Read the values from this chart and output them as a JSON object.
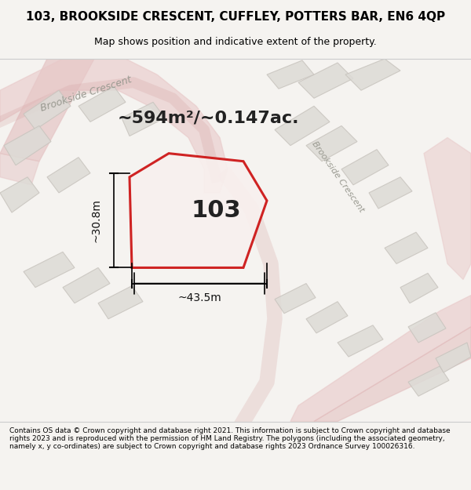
{
  "title_line1": "103, BROOKSIDE CRESCENT, CUFFLEY, POTTERS BAR, EN6 4QP",
  "title_line2": "Map shows position and indicative extent of the property.",
  "footer_text": "Contains OS data © Crown copyright and database right 2021. This information is subject to Crown copyright and database rights 2023 and is reproduced with the permission of HM Land Registry. The polygons (including the associated geometry, namely x, y co-ordinates) are subject to Crown copyright and database rights 2023 Ordnance Survey 100026316.",
  "bg_color": "#f0eeea",
  "map_bg": "#f5f3f0",
  "road_color_light": "#e8c8c8",
  "road_color_medium": "#d4a0a0",
  "building_fill": "#e0ddd8",
  "building_edge": "#c8c4be",
  "property_fill": "#f5f0ee",
  "property_edge": "#cc2222",
  "street_label_color": "#888880",
  "property_label": "103",
  "area_text": "~594m²/~0.147ac.",
  "width_label": "~43.5m",
  "height_label": "~30.8m",
  "map_area": [
    0.0,
    0.08,
    1.0,
    0.8
  ]
}
